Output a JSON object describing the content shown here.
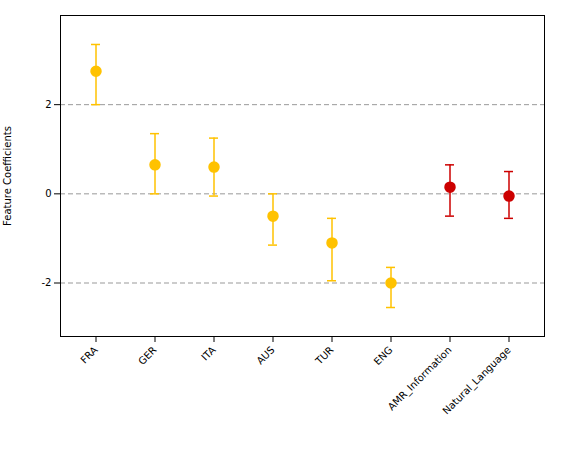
{
  "chart_data": {
    "type": "errorbar",
    "categories": [
      "FRA",
      "GER",
      "ITA",
      "AUS",
      "TUR",
      "ENG",
      "AMR_Information",
      "Natural_Language"
    ],
    "values": [
      2.75,
      0.65,
      0.6,
      -0.5,
      -1.1,
      -2.0,
      0.15,
      -0.05
    ],
    "errors_upper": [
      0.6,
      0.7,
      0.65,
      0.5,
      0.55,
      0.35,
      0.5,
      0.55
    ],
    "errors_lower": [
      0.75,
      0.65,
      0.65,
      0.65,
      0.85,
      0.55,
      0.65,
      0.5
    ],
    "colors": [
      "#FFC200",
      "#FFC200",
      "#FFC200",
      "#FFC200",
      "#FFC200",
      "#FFC200",
      "#CC0000",
      "#CC0000"
    ],
    "ylabel": "Feature Coefficients",
    "ylim": [
      -3.2,
      4.0
    ],
    "yticks": [
      -2,
      0,
      2
    ],
    "hlines": [
      -2,
      0,
      2
    ],
    "grid": false
  }
}
